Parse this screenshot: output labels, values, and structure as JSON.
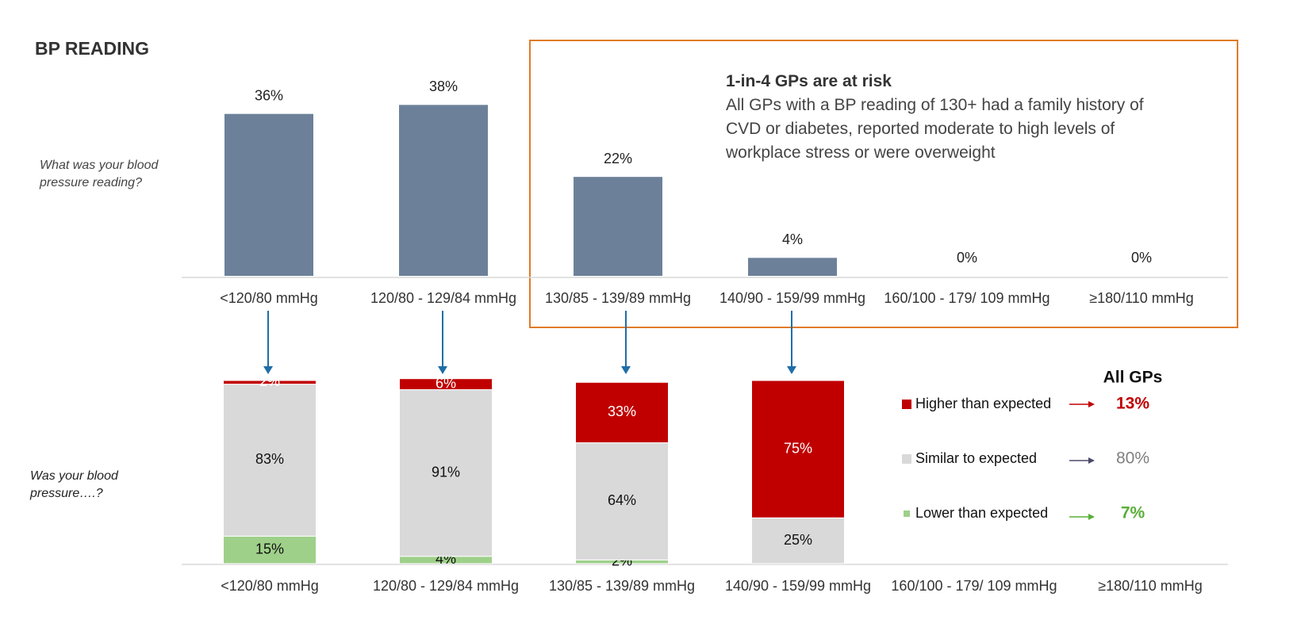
{
  "chart_data": [
    {
      "type": "bar",
      "title": "BP READING",
      "ylabel": "What was your blood pressure reading?",
      "categories": [
        "<120/80 mmHg",
        "120/80 - 129/84 mmHg",
        "130/85 - 139/89 mmHg",
        "140/90 - 159/99 mmHg",
        "160/100 - 179/ 109 mmHg",
        "≥180/110 mmHg"
      ],
      "values": [
        36,
        38,
        22,
        4,
        0,
        0
      ],
      "value_labels": [
        "36%",
        "38%",
        "22%",
        "4%",
        "0%",
        "0%"
      ],
      "color": "#6c8199",
      "ylim": [
        0,
        40
      ],
      "annotation": {
        "title": "1-in-4 GPs are at risk",
        "text": "All GPs with a BP reading of 130+ had a family history of CVD or diabetes, reported moderate to high levels of workplace stress or were overweight"
      }
    },
    {
      "type": "stacked_bar",
      "ylabel": "Was your blood pressure….?",
      "legend_title": "All GPs",
      "categories": [
        "<120/80 mmHg",
        "120/80 - 129/84 mmHg",
        "130/85 - 139/89 mmHg",
        "140/90 - 159/99 mmHg",
        "160/100 - 179/ 109 mmHg",
        "≥180/110 mmHg"
      ],
      "ylim": [
        0,
        100
      ],
      "series": [
        {
          "name": "Higher than expected",
          "color": "#c00000",
          "values": [
            2,
            6,
            33,
            75,
            null,
            null
          ],
          "value_labels": [
            "2%",
            "6%",
            "33%",
            "75%",
            null,
            null
          ],
          "total": 13,
          "total_label": "13%",
          "total_color": "#c00000"
        },
        {
          "name": "Similar to expected",
          "color": "#d9d9d9",
          "values": [
            83,
            91,
            64,
            25,
            null,
            null
          ],
          "value_labels": [
            "83%",
            "91%",
            "64%",
            "25%",
            null,
            null
          ],
          "total": 80,
          "total_label": "80%",
          "total_color": "#7f7f7f"
        },
        {
          "name": "Lower than expected",
          "color": "#9fd08a",
          "values": [
            15,
            4,
            2,
            null,
            null,
            null
          ],
          "value_labels": [
            "15%",
            "4%",
            "2%",
            null,
            null,
            null
          ],
          "total": 7,
          "total_label": "7%",
          "total_color": "#5aaf3a"
        }
      ]
    }
  ]
}
